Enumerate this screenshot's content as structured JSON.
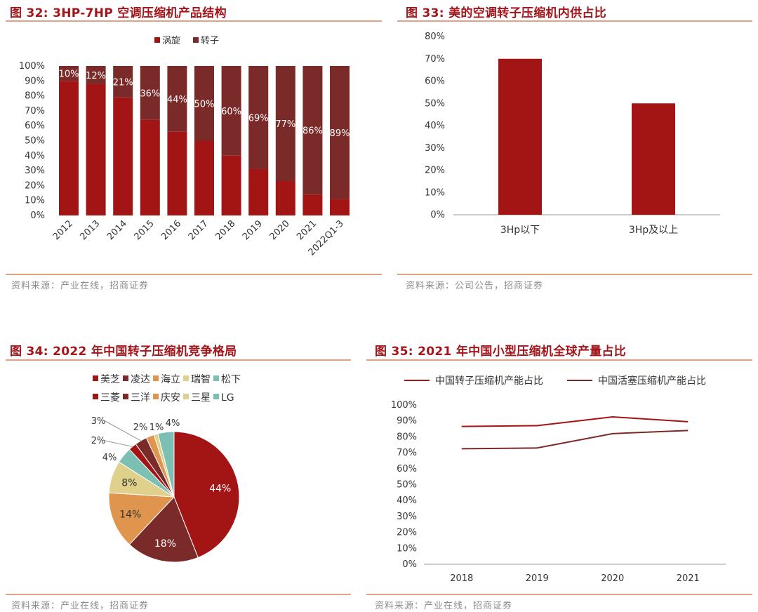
{
  "figures": {
    "fig32": {
      "title": "图 32:  3HP-7HP 空调压缩机产品结构",
      "source": "资料来源：产业在线，招商证券"
    },
    "fig33": {
      "title": "图 33:  美的空调转子压缩机内供占比",
      "source": "资料来源：公司公告，招商证券"
    },
    "fig34": {
      "title": "图 34:  2022 年中国转子压缩机竞争格局",
      "source": "资料来源：产业在线，招商证券"
    },
    "fig35": {
      "title": "图 35:  2021 年中国小型压缩机全球产量占比",
      "source": "资料来源：产业在线，招商证券"
    }
  },
  "colors": {
    "dark_red": "#a31515",
    "brown_red": "#7b2a2a",
    "orange": "#e0954e",
    "yellow": "#dfd08c",
    "teal": "#7cc0b4",
    "title_red": "#a3151a",
    "rule": "#e0a388"
  },
  "chart_data": [
    {
      "id": "fig32",
      "type": "bar",
      "stacked": true,
      "categories": [
        "2012",
        "2013",
        "2014",
        "2015",
        "2016",
        "2017",
        "2018",
        "2019",
        "2020",
        "2021",
        "2022Q1-3"
      ],
      "series": [
        {
          "name": "涡旋",
          "values": [
            90,
            88,
            79,
            64,
            56,
            50,
            40,
            31,
            23,
            14,
            11
          ],
          "color": "#a31515"
        },
        {
          "name": "转子",
          "values": [
            10,
            12,
            21,
            36,
            44,
            50,
            60,
            69,
            77,
            86,
            89
          ],
          "color": "#7b2a2a"
        }
      ],
      "data_labels": [
        "10%",
        "12%",
        "21%",
        "36%",
        "44%",
        "50%",
        "60%",
        "69%",
        "77%",
        "86%",
        "89%"
      ],
      "y_ticks": [
        "0%",
        "10%",
        "20%",
        "30%",
        "40%",
        "50%",
        "60%",
        "70%",
        "80%",
        "90%",
        "100%"
      ],
      "ylim": [
        0,
        100
      ],
      "legend_position": "top-center"
    },
    {
      "id": "fig33",
      "type": "bar",
      "categories": [
        "3Hp以下",
        "3Hp及以上"
      ],
      "values": [
        70,
        50
      ],
      "color": "#a31515",
      "y_ticks": [
        "0%",
        "10%",
        "20%",
        "30%",
        "40%",
        "50%",
        "60%",
        "70%",
        "80%"
      ],
      "ylim": [
        0,
        80
      ]
    },
    {
      "id": "fig34",
      "type": "pie",
      "slices": [
        {
          "name": "美芝",
          "value": 44,
          "label": "44%",
          "color": "#a31515"
        },
        {
          "name": "凌达",
          "value": 18,
          "label": "18%",
          "color": "#7b2a2a"
        },
        {
          "name": "海立",
          "value": 14,
          "label": "14%",
          "color": "#e0954e"
        },
        {
          "name": "瑞智",
          "value": 8,
          "label": "8%",
          "color": "#dfd08c"
        },
        {
          "name": "松下",
          "value": 4,
          "label": "4%",
          "color": "#7cc0b4"
        },
        {
          "name": "三菱",
          "value": 2,
          "label": "2%",
          "color": "#a31515"
        },
        {
          "name": "三洋",
          "value": 3,
          "label": "3%",
          "color": "#7b2a2a"
        },
        {
          "name": "庆安",
          "value": 2,
          "label": "2%",
          "color": "#e0954e"
        },
        {
          "name": "三星",
          "value": 1,
          "label": "1%",
          "color": "#dfd08c"
        },
        {
          "name": "LG",
          "value": 4,
          "label": "4%",
          "color": "#7cc0b4"
        }
      ],
      "legend_position": "top-left"
    },
    {
      "id": "fig35",
      "type": "line",
      "x": [
        "2018",
        "2019",
        "2020",
        "2021"
      ],
      "series": [
        {
          "name": "中国转子压缩机产能占比",
          "values": [
            86.5,
            87,
            92.5,
            89.5
          ],
          "color": "#a31515"
        },
        {
          "name": "中国活塞压缩机产能占比",
          "values": [
            72.5,
            73,
            82,
            84
          ],
          "color": "#7b2a2a"
        }
      ],
      "y_ticks": [
        "0%",
        "10%",
        "20%",
        "30%",
        "40%",
        "50%",
        "60%",
        "70%",
        "80%",
        "90%",
        "100%"
      ],
      "ylim": [
        0,
        100
      ],
      "legend_position": "top-center"
    }
  ]
}
